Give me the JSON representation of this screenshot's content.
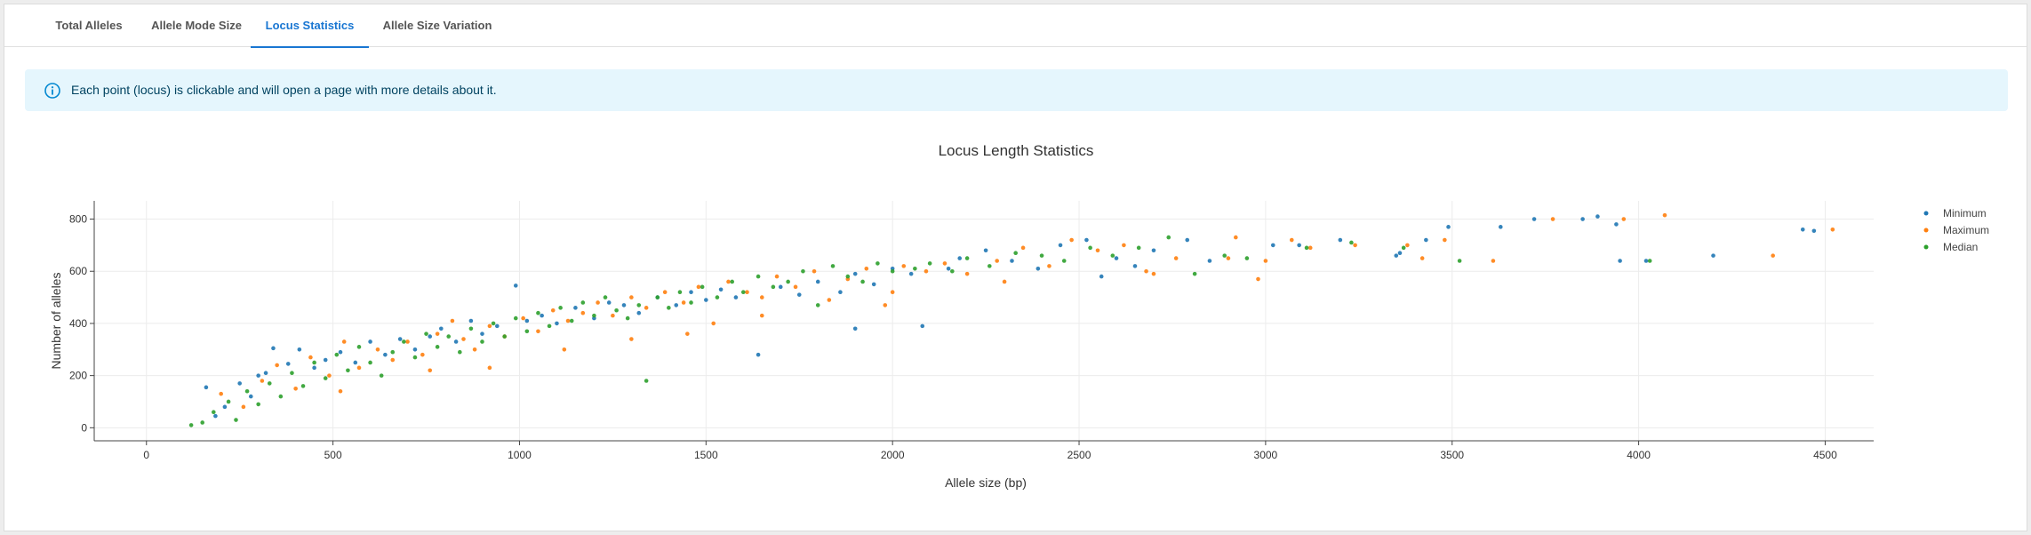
{
  "tabs": [
    {
      "label": "Total Alleles",
      "active": false
    },
    {
      "label": "Allele Mode Size",
      "active": false
    },
    {
      "label": "Locus Statistics",
      "active": true
    },
    {
      "label": "Allele Size Variation",
      "active": false
    }
  ],
  "info": {
    "icon": "info-circle-icon",
    "text": "Each point (locus) is clickable and will open a page with more details about it.",
    "color": "#0288d1"
  },
  "chart_data": {
    "type": "scatter",
    "title": "Locus Length Statistics",
    "xlabel": "Allele size (bp)",
    "ylabel": "Number of alleles",
    "xlim": [
      -140,
      4630
    ],
    "ylim": [
      -50,
      870
    ],
    "xticks": [
      0,
      500,
      1000,
      1500,
      2000,
      2500,
      3000,
      3500,
      4000,
      4500
    ],
    "yticks": [
      0,
      200,
      400,
      600,
      800
    ],
    "grid": true,
    "legend_position": "top-right",
    "series": [
      {
        "name": "Minimum",
        "color": "#1f77b4",
        "values": [
          [
            160,
            155
          ],
          [
            185,
            45
          ],
          [
            210,
            80
          ],
          [
            250,
            170
          ],
          [
            280,
            120
          ],
          [
            300,
            200
          ],
          [
            320,
            210
          ],
          [
            340,
            305
          ],
          [
            380,
            245
          ],
          [
            410,
            300
          ],
          [
            450,
            230
          ],
          [
            480,
            260
          ],
          [
            520,
            290
          ],
          [
            560,
            250
          ],
          [
            600,
            330
          ],
          [
            640,
            280
          ],
          [
            680,
            340
          ],
          [
            720,
            300
          ],
          [
            760,
            350
          ],
          [
            790,
            380
          ],
          [
            830,
            330
          ],
          [
            870,
            410
          ],
          [
            900,
            360
          ],
          [
            940,
            390
          ],
          [
            990,
            545
          ],
          [
            1020,
            410
          ],
          [
            1060,
            430
          ],
          [
            1100,
            400
          ],
          [
            1150,
            460
          ],
          [
            1200,
            420
          ],
          [
            1240,
            480
          ],
          [
            1280,
            470
          ],
          [
            1320,
            440
          ],
          [
            1370,
            500
          ],
          [
            1420,
            470
          ],
          [
            1460,
            520
          ],
          [
            1500,
            490
          ],
          [
            1540,
            530
          ],
          [
            1580,
            500
          ],
          [
            1640,
            280
          ],
          [
            1700,
            540
          ],
          [
            1750,
            510
          ],
          [
            1800,
            560
          ],
          [
            1860,
            520
          ],
          [
            1900,
            590
          ],
          [
            1950,
            550
          ],
          [
            2000,
            610
          ],
          [
            2050,
            590
          ],
          [
            2080,
            390
          ],
          [
            2150,
            610
          ],
          [
            2250,
            680
          ],
          [
            2320,
            640
          ],
          [
            2390,
            610
          ],
          [
            2450,
            700
          ],
          [
            2520,
            720
          ],
          [
            2600,
            650
          ],
          [
            2650,
            620
          ],
          [
            2700,
            680
          ],
          [
            2790,
            720
          ],
          [
            2850,
            640
          ],
          [
            3020,
            700
          ],
          [
            3090,
            700
          ],
          [
            3200,
            720
          ],
          [
            3360,
            670
          ],
          [
            3430,
            720
          ],
          [
            3490,
            770
          ],
          [
            3630,
            770
          ],
          [
            3720,
            800
          ],
          [
            3850,
            800
          ],
          [
            3950,
            640
          ],
          [
            4020,
            640
          ],
          [
            4200,
            660
          ],
          [
            4440,
            760
          ],
          [
            4470,
            755
          ],
          [
            3890,
            810
          ],
          [
            3940,
            780
          ],
          [
            3350,
            660
          ],
          [
            2180,
            650
          ],
          [
            2560,
            580
          ],
          [
            1900,
            380
          ]
        ]
      },
      {
        "name": "Maximum",
        "color": "#ff7f0e",
        "values": [
          [
            200,
            130
          ],
          [
            260,
            80
          ],
          [
            310,
            180
          ],
          [
            350,
            240
          ],
          [
            400,
            150
          ],
          [
            440,
            270
          ],
          [
            490,
            200
          ],
          [
            530,
            330
          ],
          [
            570,
            230
          ],
          [
            620,
            300
          ],
          [
            660,
            260
          ],
          [
            700,
            330
          ],
          [
            740,
            280
          ],
          [
            780,
            360
          ],
          [
            820,
            410
          ],
          [
            850,
            340
          ],
          [
            880,
            300
          ],
          [
            920,
            390
          ],
          [
            960,
            350
          ],
          [
            1010,
            420
          ],
          [
            1050,
            370
          ],
          [
            1090,
            450
          ],
          [
            1130,
            410
          ],
          [
            1170,
            440
          ],
          [
            1210,
            480
          ],
          [
            1250,
            430
          ],
          [
            1300,
            500
          ],
          [
            1340,
            460
          ],
          [
            1390,
            520
          ],
          [
            1440,
            480
          ],
          [
            1480,
            540
          ],
          [
            1520,
            400
          ],
          [
            1560,
            560
          ],
          [
            1610,
            520
          ],
          [
            1650,
            500
          ],
          [
            1690,
            580
          ],
          [
            1740,
            540
          ],
          [
            1790,
            600
          ],
          [
            1830,
            490
          ],
          [
            1880,
            570
          ],
          [
            1930,
            610
          ],
          [
            1980,
            470
          ],
          [
            2030,
            620
          ],
          [
            2090,
            600
          ],
          [
            2140,
            630
          ],
          [
            2200,
            590
          ],
          [
            2280,
            640
          ],
          [
            2350,
            690
          ],
          [
            2420,
            620
          ],
          [
            2480,
            720
          ],
          [
            2550,
            680
          ],
          [
            2620,
            700
          ],
          [
            2680,
            600
          ],
          [
            2760,
            650
          ],
          [
            2920,
            730
          ],
          [
            2980,
            570
          ],
          [
            3000,
            640
          ],
          [
            3070,
            720
          ],
          [
            3120,
            690
          ],
          [
            3240,
            700
          ],
          [
            3420,
            650
          ],
          [
            3480,
            720
          ],
          [
            3610,
            640
          ],
          [
            3770,
            800
          ],
          [
            3960,
            800
          ],
          [
            4070,
            815
          ],
          [
            4360,
            660
          ],
          [
            4520,
            760
          ],
          [
            1120,
            300
          ],
          [
            1650,
            430
          ],
          [
            2300,
            560
          ],
          [
            2900,
            650
          ],
          [
            3380,
            700
          ],
          [
            920,
            230
          ],
          [
            1450,
            360
          ],
          [
            520,
            140
          ],
          [
            760,
            220
          ],
          [
            1300,
            340
          ],
          [
            2000,
            520
          ],
          [
            2700,
            590
          ]
        ]
      },
      {
        "name": "Median",
        "color": "#2ca02c",
        "values": [
          [
            120,
            10
          ],
          [
            150,
            20
          ],
          [
            180,
            60
          ],
          [
            220,
            100
          ],
          [
            240,
            30
          ],
          [
            270,
            140
          ],
          [
            300,
            90
          ],
          [
            330,
            170
          ],
          [
            360,
            120
          ],
          [
            390,
            210
          ],
          [
            420,
            160
          ],
          [
            450,
            250
          ],
          [
            480,
            190
          ],
          [
            510,
            280
          ],
          [
            540,
            220
          ],
          [
            570,
            310
          ],
          [
            600,
            250
          ],
          [
            630,
            200
          ],
          [
            660,
            290
          ],
          [
            690,
            330
          ],
          [
            720,
            270
          ],
          [
            750,
            360
          ],
          [
            780,
            310
          ],
          [
            810,
            350
          ],
          [
            840,
            290
          ],
          [
            870,
            380
          ],
          [
            900,
            330
          ],
          [
            930,
            400
          ],
          [
            960,
            350
          ],
          [
            990,
            420
          ],
          [
            1020,
            370
          ],
          [
            1050,
            440
          ],
          [
            1080,
            390
          ],
          [
            1110,
            460
          ],
          [
            1140,
            410
          ],
          [
            1170,
            480
          ],
          [
            1200,
            430
          ],
          [
            1230,
            500
          ],
          [
            1260,
            450
          ],
          [
            1290,
            420
          ],
          [
            1320,
            470
          ],
          [
            1340,
            180
          ],
          [
            1370,
            500
          ],
          [
            1400,
            460
          ],
          [
            1430,
            520
          ],
          [
            1460,
            480
          ],
          [
            1490,
            540
          ],
          [
            1530,
            500
          ],
          [
            1570,
            560
          ],
          [
            1600,
            520
          ],
          [
            1640,
            580
          ],
          [
            1680,
            540
          ],
          [
            1720,
            560
          ],
          [
            1760,
            600
          ],
          [
            1800,
            470
          ],
          [
            1840,
            620
          ],
          [
            1880,
            580
          ],
          [
            1920,
            560
          ],
          [
            1960,
            630
          ],
          [
            2000,
            600
          ],
          [
            2060,
            610
          ],
          [
            2100,
            630
          ],
          [
            2160,
            600
          ],
          [
            2200,
            650
          ],
          [
            2260,
            620
          ],
          [
            2330,
            670
          ],
          [
            2400,
            660
          ],
          [
            2460,
            640
          ],
          [
            2530,
            690
          ],
          [
            2590,
            660
          ],
          [
            2660,
            690
          ],
          [
            2740,
            730
          ],
          [
            2810,
            590
          ],
          [
            2890,
            660
          ],
          [
            2950,
            650
          ],
          [
            3110,
            690
          ],
          [
            3230,
            710
          ],
          [
            3370,
            690
          ],
          [
            3520,
            640
          ],
          [
            4030,
            640
          ]
        ]
      }
    ]
  }
}
